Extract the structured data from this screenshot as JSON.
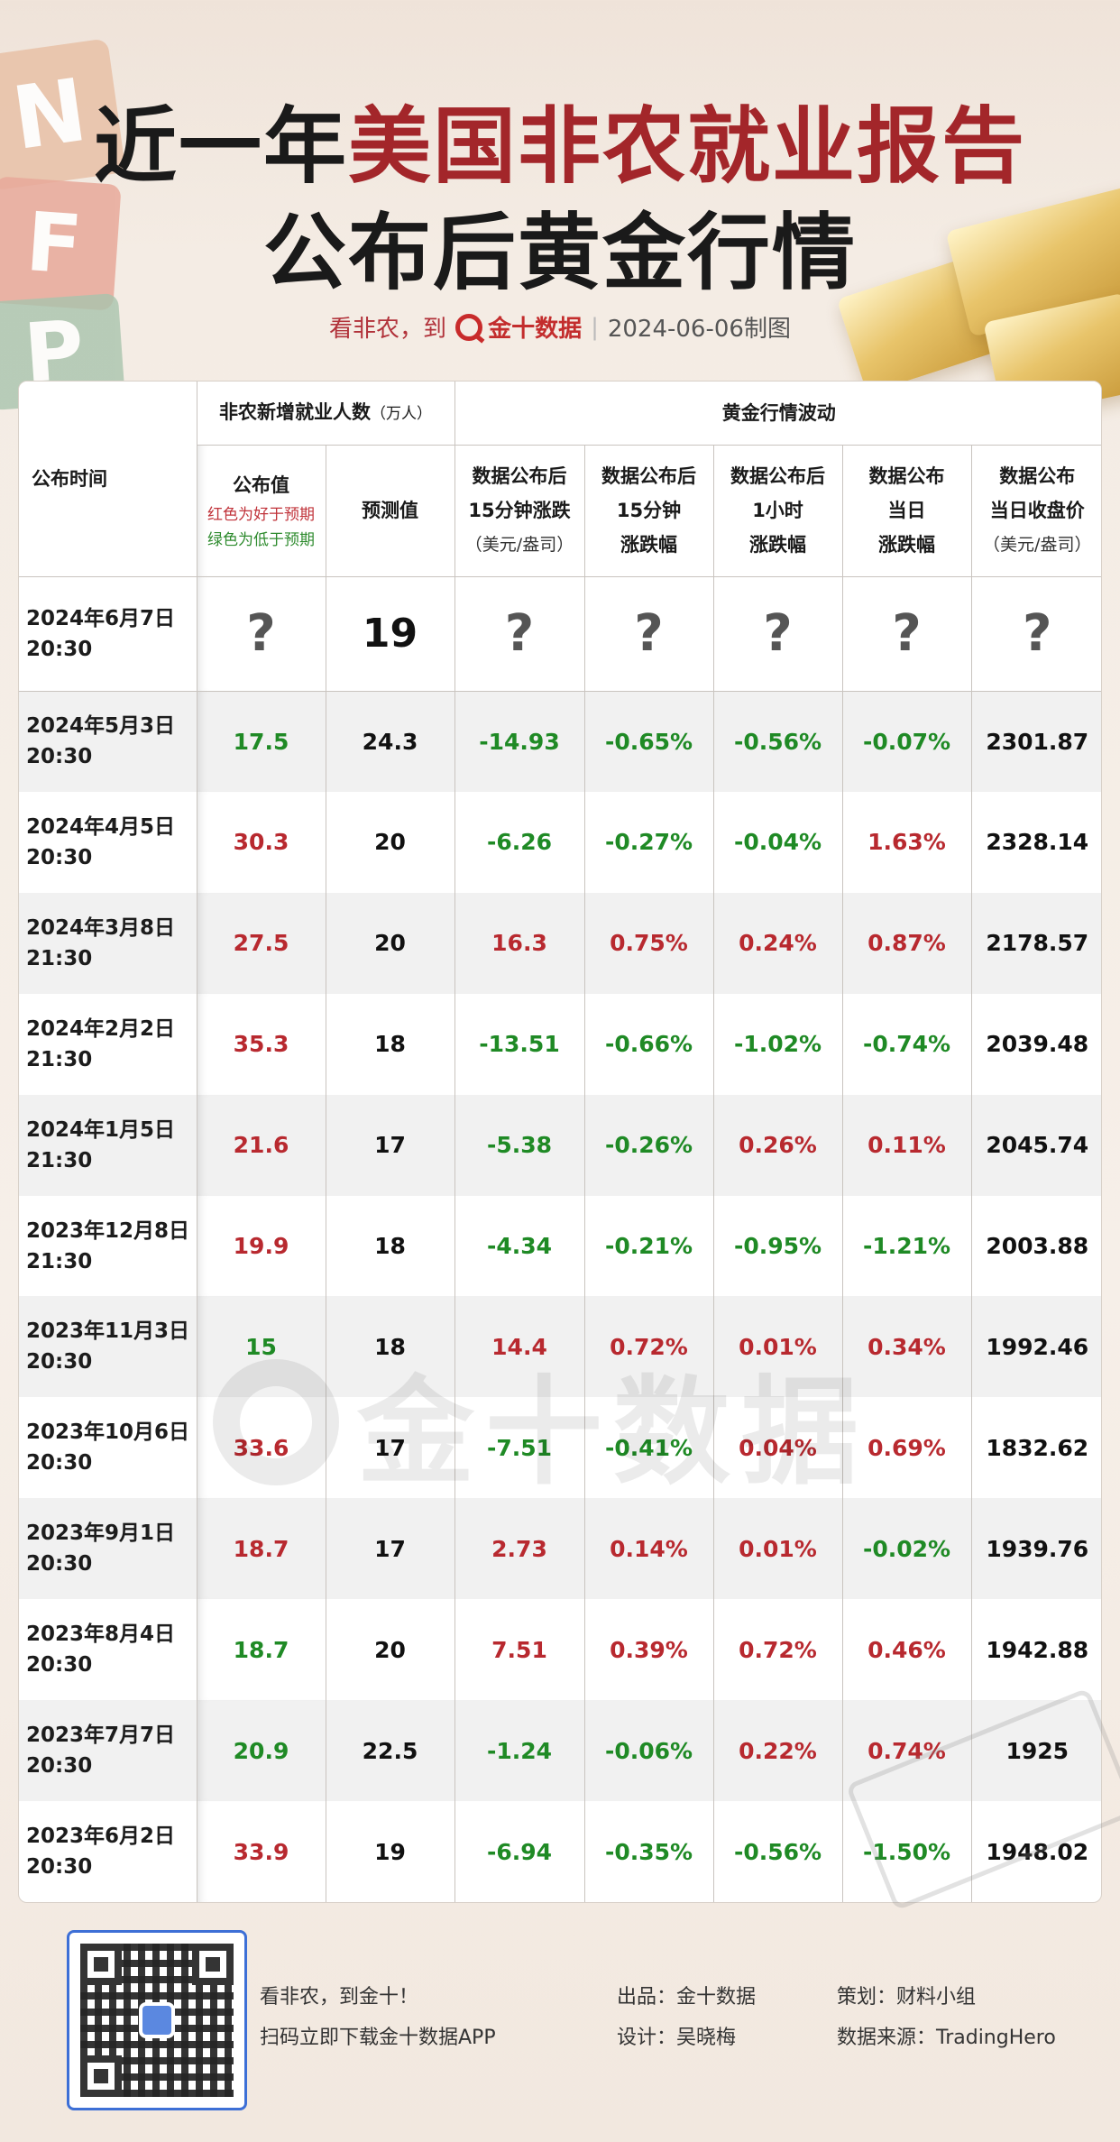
{
  "title": {
    "line1_prefix": "近一年",
    "line1_red": "美国非农就业报告",
    "line2": "公布后黄金行情"
  },
  "decor": {
    "cubes": [
      "N",
      "F",
      "P"
    ]
  },
  "subline": {
    "slogan": "看非农，到",
    "brand": "金十数据",
    "date": "2024-06-06制图"
  },
  "table": {
    "headers": {
      "time": "公布时间",
      "nfp_group": "非农新增就业人数",
      "nfp_unit": "（万人）",
      "gold_group": "黄金行情波动",
      "actual": "公布值",
      "actual_note_red": "红色为好于预期",
      "actual_note_green": "绿色为低于预期",
      "forecast": "预测值",
      "c1": [
        "数据公布后",
        "15分钟涨跌",
        "（美元/盎司）"
      ],
      "c2": [
        "数据公布后",
        "15分钟",
        "涨跌幅"
      ],
      "c3": [
        "数据公布后",
        "1小时",
        "涨跌幅"
      ],
      "c4": [
        "数据公布",
        "当日",
        "涨跌幅"
      ],
      "c5": [
        "数据公布",
        "当日收盘价",
        "（美元/盎司）"
      ]
    },
    "first_row": {
      "date": "2024年6月7日",
      "time": "20:30",
      "actual": "?",
      "forecast": "19",
      "c1": "?",
      "c2": "?",
      "c3": "?",
      "c4": "?",
      "c5": "?"
    },
    "rows": [
      {
        "date": "2024年5月3日",
        "time": "20:30",
        "actual": "17.5",
        "ac": "g",
        "forecast": "24.3",
        "c1": "-14.93",
        "c1c": "g",
        "c2": "-0.65%",
        "c2c": "g",
        "c3": "-0.56%",
        "c3c": "g",
        "c4": "-0.07%",
        "c4c": "g",
        "c5": "2301.87"
      },
      {
        "date": "2024年4月5日",
        "time": "20:30",
        "actual": "30.3",
        "ac": "r",
        "forecast": "20",
        "c1": "-6.26",
        "c1c": "g",
        "c2": "-0.27%",
        "c2c": "g",
        "c3": "-0.04%",
        "c3c": "g",
        "c4": "1.63%",
        "c4c": "r",
        "c5": "2328.14"
      },
      {
        "date": "2024年3月8日",
        "time": "21:30",
        "actual": "27.5",
        "ac": "r",
        "forecast": "20",
        "c1": "16.3",
        "c1c": "r",
        "c2": "0.75%",
        "c2c": "r",
        "c3": "0.24%",
        "c3c": "r",
        "c4": "0.87%",
        "c4c": "r",
        "c5": "2178.57"
      },
      {
        "date": "2024年2月2日",
        "time": "21:30",
        "actual": "35.3",
        "ac": "r",
        "forecast": "18",
        "c1": "-13.51",
        "c1c": "g",
        "c2": "-0.66%",
        "c2c": "g",
        "c3": "-1.02%",
        "c3c": "g",
        "c4": "-0.74%",
        "c4c": "g",
        "c5": "2039.48"
      },
      {
        "date": "2024年1月5日",
        "time": "21:30",
        "actual": "21.6",
        "ac": "r",
        "forecast": "17",
        "c1": "-5.38",
        "c1c": "g",
        "c2": "-0.26%",
        "c2c": "g",
        "c3": "0.26%",
        "c3c": "r",
        "c4": "0.11%",
        "c4c": "r",
        "c5": "2045.74"
      },
      {
        "date": "2023年12月8日",
        "time": "21:30",
        "actual": "19.9",
        "ac": "r",
        "forecast": "18",
        "c1": "-4.34",
        "c1c": "g",
        "c2": "-0.21%",
        "c2c": "g",
        "c3": "-0.95%",
        "c3c": "g",
        "c4": "-1.21%",
        "c4c": "g",
        "c5": "2003.88"
      },
      {
        "date": "2023年11月3日",
        "time": "20:30",
        "actual": "15",
        "ac": "g",
        "forecast": "18",
        "c1": "14.4",
        "c1c": "r",
        "c2": "0.72%",
        "c2c": "r",
        "c3": "0.01%",
        "c3c": "r",
        "c4": "0.34%",
        "c4c": "r",
        "c5": "1992.46"
      },
      {
        "date": "2023年10月6日",
        "time": "20:30",
        "actual": "33.6",
        "ac": "r",
        "forecast": "17",
        "c1": "-7.51",
        "c1c": "g",
        "c2": "-0.41%",
        "c2c": "g",
        "c3": "0.04%",
        "c3c": "r",
        "c4": "0.69%",
        "c4c": "r",
        "c5": "1832.62"
      },
      {
        "date": "2023年9月1日",
        "time": "20:30",
        "actual": "18.7",
        "ac": "r",
        "forecast": "17",
        "c1": "2.73",
        "c1c": "r",
        "c2": "0.14%",
        "c2c": "r",
        "c3": "0.01%",
        "c3c": "r",
        "c4": "-0.02%",
        "c4c": "g",
        "c5": "1939.76"
      },
      {
        "date": "2023年8月4日",
        "time": "20:30",
        "actual": "18.7",
        "ac": "g",
        "forecast": "20",
        "c1": "7.51",
        "c1c": "r",
        "c2": "0.39%",
        "c2c": "r",
        "c3": "0.72%",
        "c3c": "r",
        "c4": "0.46%",
        "c4c": "r",
        "c5": "1942.88"
      },
      {
        "date": "2023年7月7日",
        "time": "20:30",
        "actual": "20.9",
        "ac": "g",
        "forecast": "22.5",
        "c1": "-1.24",
        "c1c": "g",
        "c2": "-0.06%",
        "c2c": "g",
        "c3": "0.22%",
        "c3c": "r",
        "c4": "0.74%",
        "c4c": "r",
        "c5": "1925"
      },
      {
        "date": "2023年6月2日",
        "time": "20:30",
        "actual": "33.9",
        "ac": "r",
        "forecast": "19",
        "c1": "-6.94",
        "c1c": "g",
        "c2": "-0.35%",
        "c2c": "g",
        "c3": "-0.56%",
        "c3c": "g",
        "c4": "-1.50%",
        "c4c": "g",
        "c5": "1948.02"
      }
    ]
  },
  "watermark": "金十数据",
  "footer": {
    "qr_line1": "看非农，到金十！",
    "qr_line2": "扫码立即下载金十数据APP",
    "producer": "出品：金十数据",
    "designer": "设计：吴晓梅",
    "planner": "策划：财料小组",
    "source": "数据来源：TradingHero"
  },
  "colors": {
    "red": "#b8292f",
    "green": "#1f8a25",
    "title_red": "#a3262a"
  }
}
